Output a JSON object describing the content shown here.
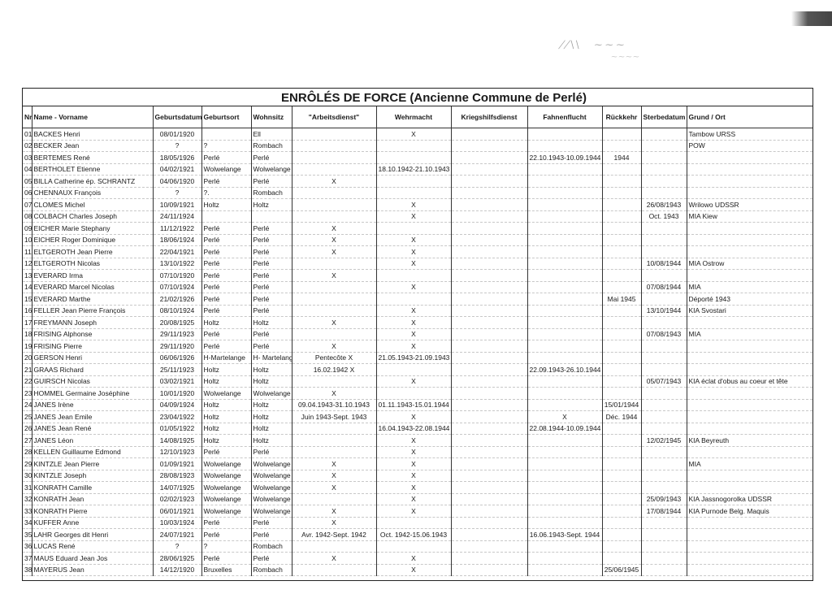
{
  "title": "ENRÔLÉS DE FORCE  (Ancienne Commune de Perlé)",
  "columns": [
    "Nr",
    "Name - Vorname",
    "Geburtsdatum",
    "Geburtsort",
    "Wohnsitz",
    "\"Arbeitsdienst\"",
    "Wehrmacht",
    "Kriegshilfsdienst",
    "Fahnenflucht",
    "Rückkehr",
    "Sterbedatum",
    "Grund / Ort"
  ],
  "rows": [
    [
      "01",
      "BACKES Henri",
      "08/01/1920",
      "",
      "Ell",
      "",
      "X",
      "",
      "",
      "",
      "",
      "Tambow URSS"
    ],
    [
      "02",
      "BECKER Jean",
      "?",
      "?",
      "Rombach",
      "",
      "",
      "",
      "",
      "",
      "",
      "POW"
    ],
    [
      "03",
      "BERTEMES René",
      "18/05/1926",
      "Perlé",
      "Perlé",
      "",
      "",
      "",
      "22.10.1943-10.09.1944",
      "1944",
      "",
      ""
    ],
    [
      "04",
      "BERTHOLET Etienne",
      "04/02/1921",
      "Wolwelange",
      "Wolwelange",
      "",
      "18.10.1942-21.10.1943",
      "",
      "",
      "",
      "",
      ""
    ],
    [
      "05",
      "BILLA Catherine ép. SCHRANTZ",
      "04/06/1920",
      "Perlé",
      "Perlé",
      "X",
      "",
      "",
      "",
      "",
      "",
      ""
    ],
    [
      "06",
      "CHENNAUX François",
      "?",
      "?.",
      "Rombach",
      "",
      "",
      "",
      "",
      "",
      "",
      ""
    ],
    [
      "07",
      "CLOMES Michel",
      "10/09/1921",
      "Holtz",
      "Holtz",
      "",
      "X",
      "",
      "",
      "",
      "26/08/1943",
      "Wrilowo UDSSR"
    ],
    [
      "08",
      "COLBACH Charles Joseph",
      "24/11/1924",
      "",
      "",
      "",
      "X",
      "",
      "",
      "",
      "Oct. 1943",
      "MIA Kiew"
    ],
    [
      "09",
      "EICHER Marie Stephany",
      "11/12/1922",
      "Perlé",
      "Perlé",
      "X",
      "",
      "",
      "",
      "",
      "",
      ""
    ],
    [
      "10",
      "EICHER Roger Dominique",
      "18/06/1924",
      "Perlé",
      "Perlé",
      "X",
      "X",
      "",
      "",
      "",
      "",
      ""
    ],
    [
      "11",
      "ELTGEROTH Jean Pierre",
      "22/04/1921",
      "Perlé",
      "Perlé",
      "X",
      "X",
      "",
      "",
      "",
      "",
      ""
    ],
    [
      "12",
      "ELTGEROTH Nicolas",
      "13/10/1922",
      "Perlé",
      "Perlé",
      "",
      "X",
      "",
      "",
      "",
      "10/08/1944",
      "MIA Ostrow"
    ],
    [
      "13",
      "EVERARD Irma",
      "07/10/1920",
      "Perlé",
      "Perlé",
      "X",
      "",
      "",
      "",
      "",
      "",
      ""
    ],
    [
      "14",
      "EVERARD Marcel Nicolas",
      "07/10/1924",
      "Perlé",
      "Perlé",
      "",
      "X",
      "",
      "",
      "",
      "07/08/1944",
      "MIA"
    ],
    [
      "15",
      "EVERARD Marthe",
      "21/02/1926",
      "Perlé",
      "Perlé",
      "",
      "",
      "",
      "",
      "Mai 1945",
      "",
      "Déporté 1943"
    ],
    [
      "16",
      "FELLER Jean Pierre François",
      "08/10/1924",
      "Perlé",
      "Perlé",
      "",
      "X",
      "",
      "",
      "",
      "13/10/1944",
      "KIA Svostari"
    ],
    [
      "17",
      "FREYMANN Joseph",
      "20/08/1925",
      "Holtz",
      "Holtz",
      "X",
      "X",
      "",
      "",
      "",
      "",
      ""
    ],
    [
      "18",
      "FRISING Alphonse",
      "29/11/1923",
      "Perlé",
      "Perlé",
      "",
      "X",
      "",
      "",
      "",
      "07/08/1943",
      "MIA"
    ],
    [
      "19",
      "FRISING Pierre",
      "29/11/1920",
      "Perlé",
      "Perlé",
      "X",
      "X",
      "",
      "",
      "",
      "",
      ""
    ],
    [
      "20",
      "GERSON Henri",
      "06/06/1926",
      "H-Martelange",
      "H- Martelange",
      "Pentecôte X",
      "21.05.1943-21.09.1943",
      "",
      "",
      "",
      "",
      ""
    ],
    [
      "21",
      "GRAAS Richard",
      "25/11/1923",
      "Holtz",
      "Holtz",
      "16.02.1942 X",
      "",
      "",
      "22.09.1943-26.10.1944",
      "",
      "",
      ""
    ],
    [
      "22",
      "GUIRSCH Nicolas",
      "03/02/1921",
      "Holtz",
      "Holtz",
      "",
      "X",
      "",
      "",
      "",
      "05/07/1943",
      "KIA éclat d'obus au coeur et tête"
    ],
    [
      "23",
      "HOMMEL Germaine Joséphine",
      "10/01/1920",
      "Wolwelange",
      "Wolwelange",
      "X",
      "",
      "",
      "",
      "",
      "",
      ""
    ],
    [
      "24",
      "JANES Irène",
      "04/09/1924",
      "Holtz",
      "Holtz",
      "09.04.1943-31.10.1943",
      "01.11.1943-15.01.1944",
      "",
      "",
      "15/01/1944",
      "",
      ""
    ],
    [
      "25",
      "JANES Jean Emile",
      "23/04/1922",
      "Holtz",
      "Holtz",
      "Juin 1943-Sept. 1943",
      "X",
      "",
      "X",
      "Déc. 1944",
      "",
      ""
    ],
    [
      "26",
      "JANES Jean René",
      "01/05/1922",
      "Holtz",
      "Holtz",
      "",
      "16.04.1943-22.08.1944",
      "",
      "22.08.1944-10.09.1944",
      "",
      "",
      ""
    ],
    [
      "27",
      "JANES Léon",
      "14/08/1925",
      "Holtz",
      "Holtz",
      "",
      "X",
      "",
      "",
      "",
      "12/02/1945",
      "KIA Beyreuth"
    ],
    [
      "28",
      "KELLEN Guillaume Edmond",
      "12/10/1923",
      "Perlé",
      "Perlé",
      "",
      "X",
      "",
      "",
      "",
      "",
      ""
    ],
    [
      "29",
      "KINTZLE Jean Pierre",
      "01/09/1921",
      "Wolwelange",
      "Wolwelange",
      "X",
      "X",
      "",
      "",
      "",
      "",
      "MIA"
    ],
    [
      "30",
      "KINTZLE Joseph",
      "28/08/1923",
      "Wolwelange",
      "Wolwelange",
      "X",
      "X",
      "",
      "",
      "",
      "",
      ""
    ],
    [
      "31",
      "KONRATH Camille",
      "14/07/1925",
      "Wolwelange",
      "Wolwelange",
      "X",
      "X",
      "",
      "",
      "",
      "",
      ""
    ],
    [
      "32",
      "KONRATH Jean",
      "02/02/1923",
      "Wolwelange",
      "Wolwelange",
      "",
      "X",
      "",
      "",
      "",
      "25/09/1943",
      "KIA Jassnogorolka UDSSR"
    ],
    [
      "33",
      "KONRATH Pierre",
      "06/01/1921",
      "Wolwelange",
      "Wolwelange",
      "X",
      "X",
      "",
      "",
      "",
      "17/08/1944",
      "KIA Purnode Belg. Maquis"
    ],
    [
      "34",
      "KUFFER Anne",
      "10/03/1924",
      "Perlé",
      "Perlé",
      "X",
      "",
      "",
      "",
      "",
      "",
      ""
    ],
    [
      "35",
      "LAHR Georges dit Henri",
      "24/07/1921",
      "Perlé",
      "Perlé",
      "Avr. 1942-Sept. 1942",
      "Oct. 1942-15.06.1943",
      "",
      "16.06.1943-Sept. 1944",
      "",
      "",
      ""
    ],
    [
      "36",
      "LUCAS René",
      "?",
      "?",
      "Rombach",
      "",
      "",
      "",
      "",
      "",
      "",
      ""
    ],
    [
      "37",
      "MAUS Eduard Jean Jos",
      "28/06/1925",
      "Perlé",
      "Perlé",
      "X",
      "X",
      "",
      "",
      "",
      "",
      ""
    ],
    [
      "38",
      "MAYERUS Jean",
      "14/12/1920",
      "Bruxelles",
      "Rombach",
      "",
      "X",
      "",
      "",
      "25/06/1945",
      "",
      ""
    ]
  ]
}
